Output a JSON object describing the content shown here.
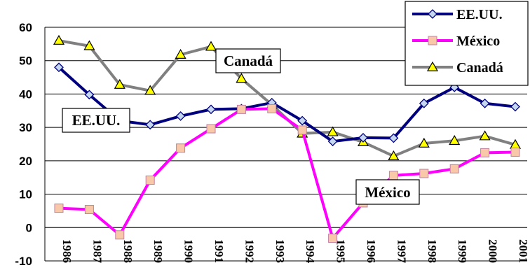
{
  "chart_data": {
    "type": "line",
    "title": "",
    "xlabel": "",
    "ylabel": "",
    "ylim": [
      -10,
      60
    ],
    "yticks": [
      -10,
      0,
      10,
      20,
      30,
      40,
      50,
      60
    ],
    "grid": "horizontal",
    "legend_position": "top-right",
    "categories": [
      "1986",
      "1987",
      "1988",
      "1989",
      "1990",
      "1991",
      "1992",
      "1993",
      "1994",
      "1995",
      "1996",
      "1997",
      "1998",
      "1999",
      "2000",
      "2001"
    ],
    "series": [
      {
        "name": "EE.UU.",
        "color": "#00007F",
        "marker": "diamond",
        "marker_fill": "#C5D8F0",
        "values": [
          48.0,
          39.8,
          32.0,
          30.8,
          33.4,
          35.4,
          35.6,
          37.4,
          32.0,
          25.8,
          26.9,
          26.8,
          37.2,
          42.0,
          37.2,
          36.2
        ]
      },
      {
        "name": "México",
        "color": "#FF00FF",
        "marker": "square",
        "marker_fill": "#F8C8A8",
        "values": [
          5.8,
          5.4,
          -2.2,
          14.2,
          23.8,
          29.6,
          35.4,
          35.6,
          29.2,
          -3.2,
          7.4,
          15.6,
          16.2,
          17.6,
          22.4,
          22.6
        ]
      },
      {
        "name": "Canadá",
        "color": "#808080",
        "marker": "triangle",
        "marker_fill": "#FFFF00",
        "values": [
          56.0,
          54.4,
          42.8,
          41.0,
          51.8,
          54.2,
          44.6,
          36.8,
          28.2,
          28.6,
          25.6,
          21.4,
          25.2,
          26.0,
          27.4,
          24.8
        ]
      }
    ],
    "annotations": [
      {
        "text": "EE.UU.",
        "series": "EE.UU."
      },
      {
        "text": "Canadá",
        "series": "Canadá"
      },
      {
        "text": "México",
        "series": "México"
      }
    ]
  }
}
